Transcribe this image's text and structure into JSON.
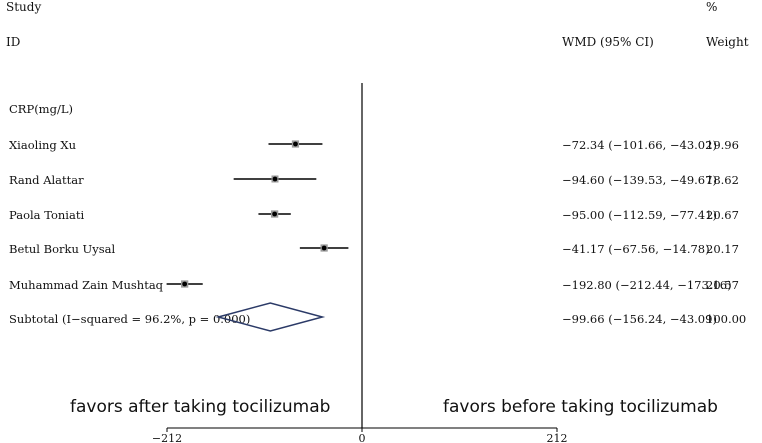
{
  "header": {
    "study": "Study",
    "id": "ID",
    "wmd_ci": "WMD (95% CI)",
    "pct": "%",
    "weight": "Weight"
  },
  "favors": {
    "left": "favors after taking tocilizumab",
    "right": "favors before taking tocilizumab"
  },
  "chart_data": {
    "type": "forest",
    "group": "CRP(mg/L)",
    "x_ticks": [
      -212,
      0,
      212
    ],
    "x_tick_labels": [
      "−212",
      "0",
      "212"
    ],
    "xlim": [
      -212,
      212
    ],
    "studies": [
      {
        "label": "Xiaoling Xu",
        "wmd": -72.34,
        "lo": -101.66,
        "hi": -43.02,
        "ci_text": "−72.34 (−101.66, −43.02)",
        "weight": "19.96"
      },
      {
        "label": "Rand Alattar",
        "wmd": -94.6,
        "lo": -139.53,
        "hi": -49.67,
        "ci_text": "−94.60 (−139.53, −49.67)",
        "weight": "18.62"
      },
      {
        "label": "Paola Toniati",
        "wmd": -95.0,
        "lo": -112.59,
        "hi": -77.41,
        "ci_text": "−95.00 (−112.59, −77.41)",
        "weight": "20.67"
      },
      {
        "label": "Betul Borku Uysal",
        "wmd": -41.17,
        "lo": -67.56,
        "hi": -14.78,
        "ci_text": "−41.17 (−67.56, −14.78)",
        "weight": "20.17"
      },
      {
        "label": "Muhammad Zain Mushtaq",
        "wmd": -192.8,
        "lo": -212.44,
        "hi": -173.16,
        "ci_text": "−192.80 (−212.44, −173.16)",
        "weight": "20.57"
      }
    ],
    "subtotal": {
      "label": "Subtotal  (I−squared = 96.2%, p = 0.000)",
      "wmd": -99.66,
      "lo": -156.24,
      "hi": -43.09,
      "ci_text": "−99.66 (−156.24, −43.09)",
      "weight": "100.00"
    }
  }
}
